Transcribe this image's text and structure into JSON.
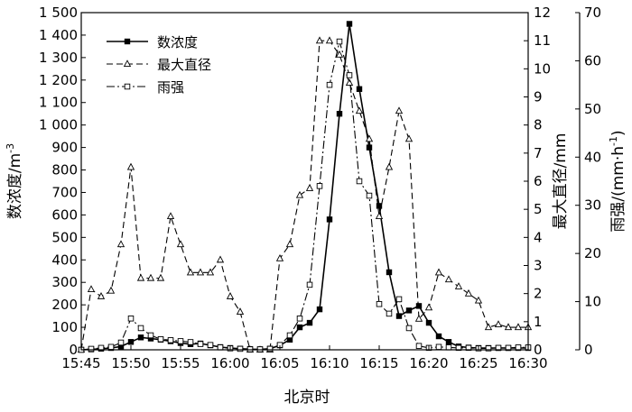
{
  "chart_data": {
    "type": "line",
    "xlabel": "北京时",
    "x_ticks": [
      "15:45",
      "15:50",
      "15:55",
      "16:00",
      "16:05",
      "16:10",
      "16:15",
      "16:20",
      "16:25",
      "16:30"
    ],
    "x_range": [
      "15:45",
      "16:30"
    ],
    "axes": {
      "left": {
        "label": "数浓度/m",
        "label_sup": "-3",
        "range": [
          0,
          1500
        ],
        "ticks": [
          0,
          100,
          200,
          300,
          400,
          500,
          600,
          700,
          800,
          900,
          1000,
          1100,
          1200,
          1300,
          1400,
          1500
        ],
        "tick_labels": [
          "0",
          "100",
          "200",
          "300",
          "400",
          "500",
          "600",
          "700",
          "800",
          "900",
          "1 000",
          "1 100",
          "1 200",
          "1 300",
          "1 400",
          "1 500"
        ]
      },
      "right1": {
        "label": "最大直径/mm",
        "range": [
          0,
          12
        ],
        "ticks": [
          0,
          1,
          2,
          3,
          4,
          5,
          6,
          7,
          8,
          9,
          10,
          11,
          12
        ],
        "tick_labels": [
          "0",
          "1",
          "2",
          "3",
          "4",
          "5",
          "6",
          "7",
          "8",
          "9",
          "10",
          "11",
          "12"
        ]
      },
      "right2": {
        "label": "雨强/(mm·h",
        "label_sup": "-1",
        "label_end": ")",
        "range": [
          0,
          70
        ],
        "ticks": [
          0,
          10,
          20,
          30,
          40,
          50,
          60,
          70
        ],
        "tick_labels": [
          "0",
          "10",
          "20",
          "30",
          "40",
          "50",
          "60",
          "70"
        ]
      }
    },
    "legend_position": "top-left",
    "series": [
      {
        "name": "数浓度",
        "axis": "left",
        "style": "solid",
        "marker": "filled-square",
        "points": [
          [
            "15:45",
            0
          ],
          [
            "15:46",
            2
          ],
          [
            "15:47",
            5
          ],
          [
            "15:48",
            8
          ],
          [
            "15:49",
            15
          ],
          [
            "15:50",
            35
          ],
          [
            "15:51",
            55
          ],
          [
            "15:52",
            50
          ],
          [
            "15:53",
            45
          ],
          [
            "15:54",
            38
          ],
          [
            "15:55",
            30
          ],
          [
            "15:56",
            25
          ],
          [
            "15:57",
            28
          ],
          [
            "15:58",
            20
          ],
          [
            "15:59",
            12
          ],
          [
            "16:00",
            8
          ],
          [
            "16:01",
            5
          ],
          [
            "16:02",
            3
          ],
          [
            "16:03",
            2
          ],
          [
            "16:04",
            5
          ],
          [
            "16:05",
            20
          ],
          [
            "16:06",
            45
          ],
          [
            "16:07",
            100
          ],
          [
            "16:08",
            120
          ],
          [
            "16:09",
            180
          ],
          [
            "16:10",
            580
          ],
          [
            "16:11",
            1050
          ],
          [
            "16:12",
            1450
          ],
          [
            "16:13",
            1160
          ],
          [
            "16:14",
            900
          ],
          [
            "16:15",
            640
          ],
          [
            "16:16",
            345
          ],
          [
            "16:17",
            150
          ],
          [
            "16:18",
            175
          ],
          [
            "16:19",
            195
          ],
          [
            "16:20",
            120
          ],
          [
            "16:21",
            60
          ],
          [
            "16:22",
            35
          ],
          [
            "16:23",
            15
          ],
          [
            "16:24",
            10
          ],
          [
            "16:25",
            8
          ],
          [
            "16:26",
            8
          ],
          [
            "16:27",
            8
          ],
          [
            "16:28",
            8
          ],
          [
            "16:29",
            8
          ],
          [
            "16:30",
            8
          ]
        ]
      },
      {
        "name": "最大直径",
        "axis": "right1",
        "style": "dashed",
        "marker": "open-triangle",
        "points": [
          [
            "15:45",
            0
          ],
          [
            "15:46",
            2.15
          ],
          [
            "15:47",
            1.9
          ],
          [
            "15:48",
            2.1
          ],
          [
            "15:49",
            3.75
          ],
          [
            "15:50",
            6.5
          ],
          [
            "15:51",
            2.55
          ],
          [
            "15:52",
            2.55
          ],
          [
            "15:53",
            2.55
          ],
          [
            "15:54",
            4.75
          ],
          [
            "15:55",
            3.75
          ],
          [
            "15:56",
            2.75
          ],
          [
            "15:57",
            2.75
          ],
          [
            "15:58",
            2.75
          ],
          [
            "15:59",
            3.2
          ],
          [
            "16:00",
            1.9
          ],
          [
            "16:01",
            1.35
          ],
          [
            "16:02",
            0
          ],
          [
            "16:03",
            0
          ],
          [
            "16:04",
            0
          ],
          [
            "16:05",
            3.25
          ],
          [
            "16:06",
            3.75
          ],
          [
            "16:07",
            5.5
          ],
          [
            "16:08",
            5.75
          ],
          [
            "16:09",
            11
          ],
          [
            "16:10",
            11
          ],
          [
            "16:11",
            10.5
          ],
          [
            "16:12",
            9.5
          ],
          [
            "16:13",
            8.5
          ],
          [
            "16:14",
            7.5
          ],
          [
            "16:15",
            4.75
          ],
          [
            "16:16",
            6.5
          ],
          [
            "16:17",
            8.5
          ],
          [
            "16:18",
            7.5
          ],
          [
            "16:19",
            1.1
          ],
          [
            "16:20",
            1.5
          ],
          [
            "16:21",
            2.75
          ],
          [
            "16:22",
            2.5
          ],
          [
            "16:23",
            2.25
          ],
          [
            "16:24",
            2.0
          ],
          [
            "16:25",
            1.75
          ],
          [
            "16:26",
            0.8
          ],
          [
            "16:27",
            0.9
          ],
          [
            "16:28",
            0.8
          ],
          [
            "16:29",
            0.8
          ],
          [
            "16:30",
            0.8
          ]
        ]
      },
      {
        "name": "雨强",
        "axis": "right2",
        "style": "dash-dot",
        "marker": "open-square",
        "points": [
          [
            "15:45",
            0
          ],
          [
            "15:46",
            0.2
          ],
          [
            "15:47",
            0.4
          ],
          [
            "15:48",
            0.6
          ],
          [
            "15:49",
            1.5
          ],
          [
            "15:50",
            6.5
          ],
          [
            "15:51",
            4.5
          ],
          [
            "15:52",
            3.0
          ],
          [
            "15:53",
            2.2
          ],
          [
            "15:54",
            2.0
          ],
          [
            "15:55",
            1.8
          ],
          [
            "15:56",
            1.6
          ],
          [
            "15:57",
            1.2
          ],
          [
            "15:58",
            1.0
          ],
          [
            "15:59",
            0.5
          ],
          [
            "16:00",
            0.3
          ],
          [
            "16:01",
            0.2
          ],
          [
            "16:02",
            0.1
          ],
          [
            "16:03",
            0.1
          ],
          [
            "16:04",
            0.2
          ],
          [
            "16:05",
            1.0
          ],
          [
            "16:06",
            3.0
          ],
          [
            "16:07",
            6.5
          ],
          [
            "16:08",
            13.5
          ],
          [
            "16:09",
            34
          ],
          [
            "16:10",
            55
          ],
          [
            "16:11",
            64
          ],
          [
            "16:12",
            57
          ],
          [
            "16:13",
            35
          ],
          [
            "16:14",
            32
          ],
          [
            "16:15",
            9.5
          ],
          [
            "16:16",
            7.5
          ],
          [
            "16:17",
            10.5
          ],
          [
            "16:18",
            4.5
          ],
          [
            "16:19",
            0.8
          ],
          [
            "16:20",
            0.4
          ],
          [
            "16:21",
            0.6
          ],
          [
            "16:22",
            0.5
          ],
          [
            "16:23",
            0.4
          ],
          [
            "16:24",
            0.4
          ],
          [
            "16:25",
            0.3
          ],
          [
            "16:26",
            0.3
          ],
          [
            "16:27",
            0.4
          ],
          [
            "16:28",
            0.4
          ],
          [
            "16:29",
            0.5
          ],
          [
            "16:30",
            0.5
          ]
        ]
      }
    ]
  }
}
